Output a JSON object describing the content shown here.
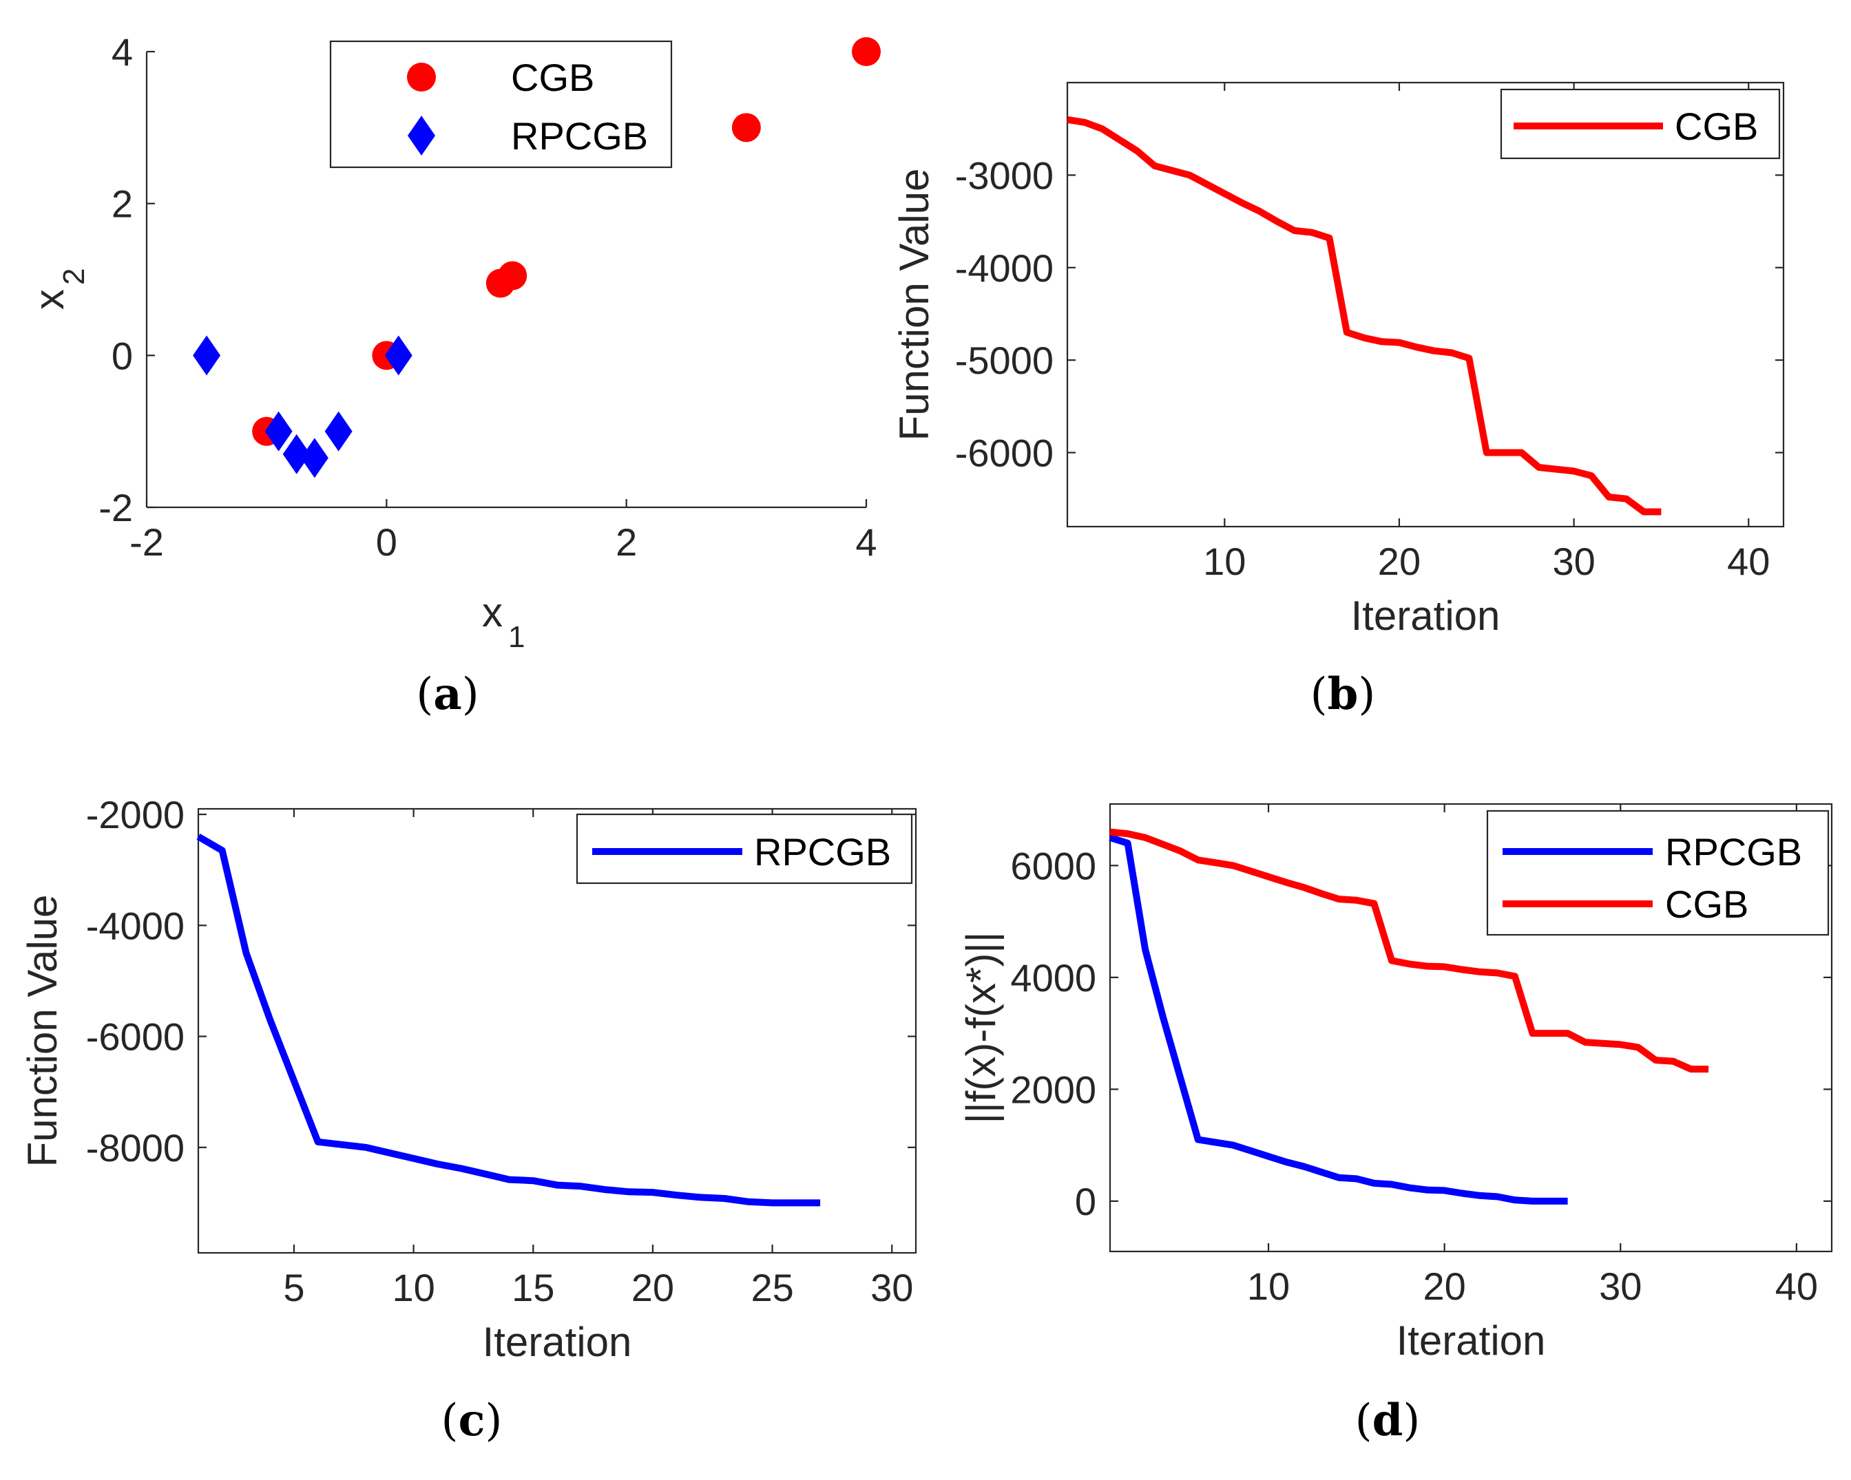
{
  "chart_data": [
    {
      "panel": "a",
      "type": "scatter",
      "panel_label": "a",
      "xlabel": "x",
      "xlabel_sub": "1",
      "ylabel": "x",
      "ylabel_sub": "2",
      "xlim": [
        -2,
        4
      ],
      "ylim": [
        -2,
        4
      ],
      "xticks": [
        -2,
        0,
        2,
        4
      ],
      "yticks": [
        -2,
        0,
        2,
        4
      ],
      "legend_position": "top-center",
      "series": [
        {
          "name": "CGB",
          "marker": "circle",
          "color": "#ff0000",
          "points": [
            [
              -1.0,
              -1.0
            ],
            [
              0.0,
              0.0
            ],
            [
              0.95,
              0.95
            ],
            [
              1.05,
              1.05
            ],
            [
              3.0,
              3.0
            ],
            [
              4.0,
              4.0
            ]
          ]
        },
        {
          "name": "RPCGB",
          "marker": "diamond",
          "color": "#0000ff",
          "points": [
            [
              -1.5,
              0.0
            ],
            [
              -0.9,
              -1.0
            ],
            [
              -0.75,
              -1.3
            ],
            [
              -0.6,
              -1.35
            ],
            [
              -0.4,
              -1.0
            ],
            [
              0.1,
              0.0
            ]
          ]
        }
      ]
    },
    {
      "panel": "b",
      "type": "line",
      "panel_label": "b",
      "xlabel": "Iteration",
      "ylabel": "Function Value",
      "xlim": [
        1,
        42
      ],
      "ylim": [
        -6800,
        -2000
      ],
      "xticks": [
        10,
        20,
        30,
        40
      ],
      "yticks": [
        -3000,
        -4000,
        -5000,
        -6000
      ],
      "legend_position": "top-right",
      "series": [
        {
          "name": "CGB",
          "color": "#ff0000",
          "x": [
            1,
            2,
            3,
            4,
            5,
            6,
            7,
            8,
            9,
            10,
            11,
            12,
            13,
            14,
            15,
            16,
            17,
            18,
            19,
            20,
            21,
            22,
            23,
            24,
            25,
            26,
            27,
            28,
            29,
            30,
            31,
            32,
            33,
            34,
            35
          ],
          "y": [
            -2400,
            -2430,
            -2500,
            -2620,
            -2740,
            -2900,
            -2950,
            -3000,
            -3100,
            -3200,
            -3300,
            -3390,
            -3500,
            -3600,
            -3620,
            -3680,
            -4700,
            -4760,
            -4800,
            -4810,
            -4860,
            -4900,
            -4920,
            -4980,
            -6000,
            -6000,
            -6000,
            -6160,
            -6180,
            -6200,
            -6250,
            -6480,
            -6500,
            -6640,
            -6640
          ]
        }
      ]
    },
    {
      "panel": "c",
      "type": "line",
      "panel_label": "c",
      "xlabel": "Iteration",
      "ylabel": "Function Value",
      "xlim": [
        1,
        31
      ],
      "ylim": [
        -9900,
        -1900
      ],
      "xticks": [
        5,
        10,
        15,
        20,
        25,
        30
      ],
      "yticks": [
        -2000,
        -4000,
        -6000,
        -8000
      ],
      "legend_position": "top-right",
      "series": [
        {
          "name": "RPCGB",
          "color": "#0000ff",
          "x": [
            1,
            2,
            3,
            4,
            5,
            6,
            7,
            8,
            9,
            10,
            11,
            12,
            13,
            14,
            15,
            16,
            17,
            18,
            19,
            20,
            21,
            22,
            23,
            24,
            25,
            26,
            27
          ],
          "y": [
            -2400,
            -2650,
            -4500,
            -5700,
            -6800,
            -7900,
            -7950,
            -8000,
            -8100,
            -8200,
            -8300,
            -8380,
            -8480,
            -8580,
            -8600,
            -8680,
            -8700,
            -8760,
            -8800,
            -8810,
            -8860,
            -8900,
            -8920,
            -8980,
            -9000,
            -9000,
            -9000
          ]
        }
      ]
    },
    {
      "panel": "d",
      "type": "line",
      "panel_label": "d",
      "xlabel": "Iteration",
      "ylabel": "||f(x)-f(x*)||",
      "xlim": [
        1,
        42
      ],
      "ylim": [
        -900,
        7100
      ],
      "xticks": [
        10,
        20,
        30,
        40
      ],
      "yticks": [
        0,
        2000,
        4000,
        6000
      ],
      "legend_position": "top-right",
      "series": [
        {
          "name": "RPCGB",
          "color": "#0000ff",
          "x": [
            1,
            2,
            3,
            4,
            5,
            6,
            7,
            8,
            9,
            10,
            11,
            12,
            13,
            14,
            15,
            16,
            17,
            18,
            19,
            20,
            21,
            22,
            23,
            24,
            25,
            26,
            27
          ],
          "y": [
            6500,
            6400,
            4500,
            3300,
            2200,
            1100,
            1050,
            1000,
            900,
            800,
            700,
            620,
            520,
            420,
            400,
            320,
            300,
            240,
            200,
            190,
            140,
            100,
            80,
            20,
            0,
            0,
            0
          ]
        },
        {
          "name": "CGB",
          "color": "#ff0000",
          "x": [
            1,
            2,
            3,
            4,
            5,
            6,
            7,
            8,
            9,
            10,
            11,
            12,
            13,
            14,
            15,
            16,
            17,
            18,
            19,
            20,
            21,
            22,
            23,
            24,
            25,
            26,
            27,
            28,
            29,
            30,
            31,
            32,
            33,
            34,
            35
          ],
          "y": [
            6600,
            6570,
            6500,
            6380,
            6260,
            6100,
            6050,
            6000,
            5900,
            5800,
            5700,
            5610,
            5500,
            5400,
            5380,
            5320,
            4300,
            4240,
            4200,
            4190,
            4140,
            4100,
            4080,
            4020,
            3000,
            3000,
            3000,
            2840,
            2820,
            2800,
            2750,
            2520,
            2500,
            2360,
            2360
          ]
        }
      ]
    }
  ]
}
